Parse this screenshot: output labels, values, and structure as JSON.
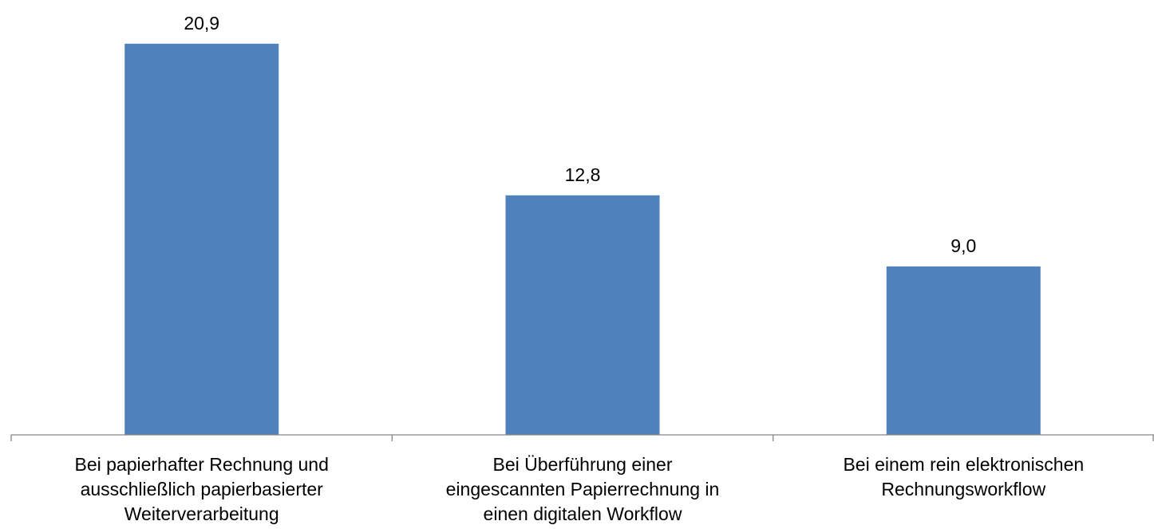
{
  "chart_data": {
    "type": "bar",
    "title": "",
    "xlabel": "",
    "ylabel": "",
    "ylim": [
      0,
      22
    ],
    "grid": false,
    "legend": "none",
    "categories": [
      [
        "Bei papierhafter Rechnung und",
        "ausschließlich papierbasierter",
        "Weiterverarbeitung"
      ],
      [
        "Bei Überführung einer",
        "eingescannten Papierrechnung in",
        "einen digitalen Workflow"
      ],
      [
        "Bei einem rein elektronischen",
        "Rechnungsworkflow"
      ]
    ],
    "values": [
      20.9,
      12.8,
      9.0
    ],
    "value_labels": [
      "20,9",
      "12,8",
      "9,0"
    ],
    "colors": {
      "bar": "#4f81bd",
      "axis": "#868686"
    }
  }
}
